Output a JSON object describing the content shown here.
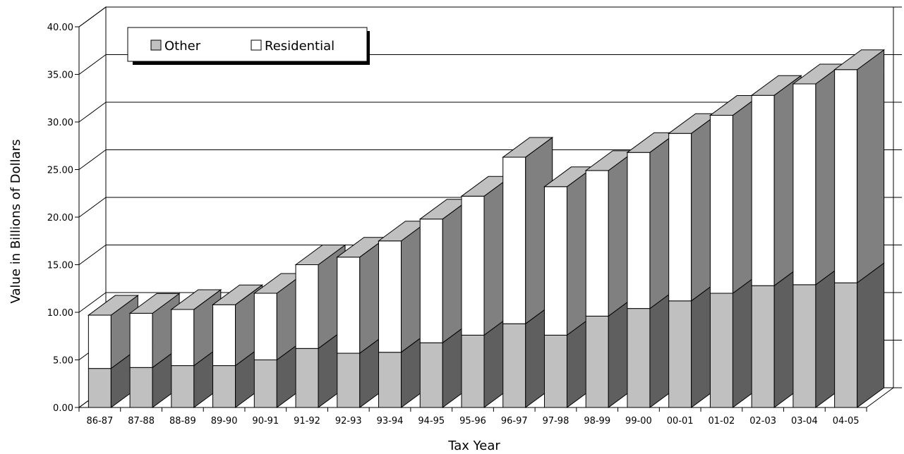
{
  "chart_data": {
    "type": "bar",
    "stacked": true,
    "style": "3d",
    "title": "",
    "xlabel": "Tax Year",
    "ylabel": "Value in Billions of Dollars",
    "ylim": [
      0,
      40
    ],
    "yticks": [
      "0.00",
      "5.00",
      "10.00",
      "15.00",
      "20.00",
      "25.00",
      "30.00",
      "35.00",
      "40.00"
    ],
    "grid": true,
    "legend_position": "top-left",
    "categories": [
      "86-87",
      "87-88",
      "88-89",
      "89-90",
      "90-91",
      "91-92",
      "92-93",
      "93-94",
      "94-95",
      "95-96",
      "96-97",
      "97-98",
      "98-99",
      "99-00",
      "00-01",
      "01-02",
      "02-03",
      "03-04",
      "04-05"
    ],
    "series": [
      {
        "name": "Other",
        "color": "#c0c0c0",
        "values": [
          4.1,
          4.2,
          4.4,
          4.4,
          5.0,
          6.2,
          5.7,
          5.8,
          6.8,
          7.6,
          8.8,
          7.6,
          9.6,
          10.4,
          11.2,
          12.0,
          12.8,
          12.9,
          13.1
        ]
      },
      {
        "name": "Residential",
        "color": "#ffffff",
        "values": [
          5.6,
          5.7,
          5.9,
          6.4,
          7.0,
          8.8,
          10.1,
          11.7,
          13.0,
          14.6,
          17.5,
          15.6,
          15.3,
          16.4,
          17.6,
          18.7,
          20.0,
          21.1,
          22.4
        ]
      }
    ]
  }
}
